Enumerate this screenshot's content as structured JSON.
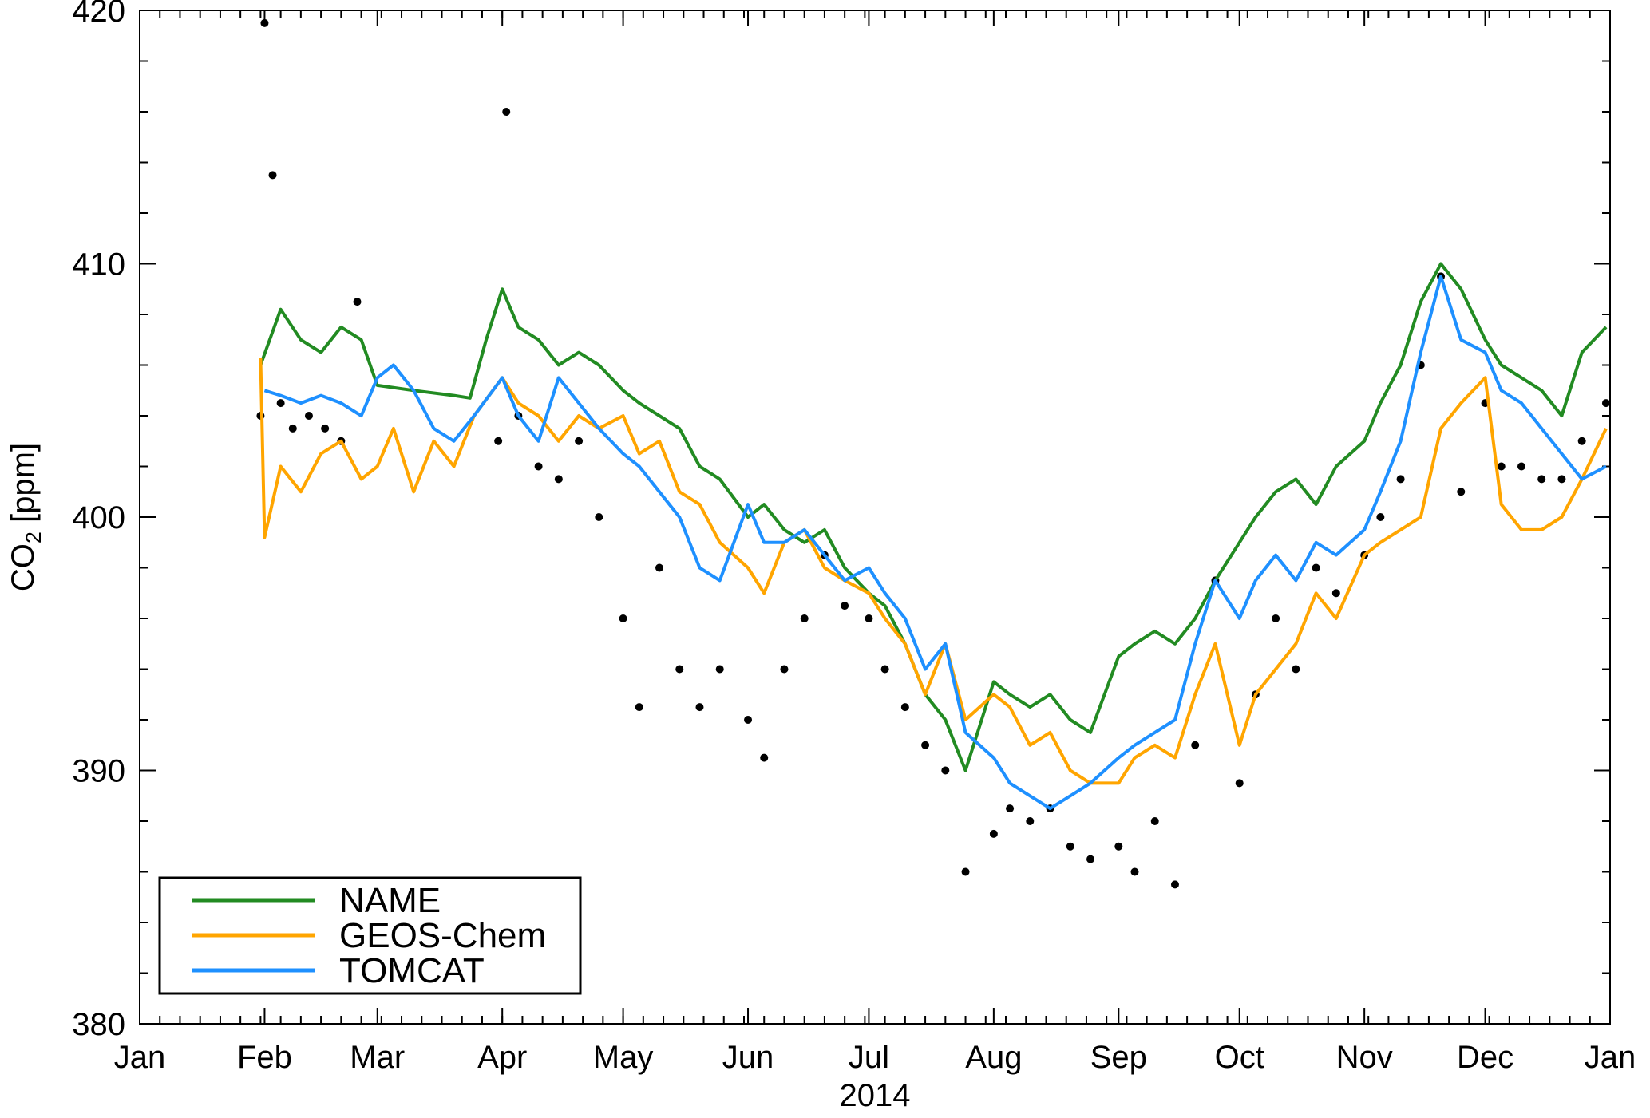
{
  "chart_data": {
    "type": "line",
    "xlabel": "2014",
    "ylabel": "CO2 [ppm]",
    "ylabel_main": "CO",
    "ylabel_sub": "2",
    "ylabel_unit": " [ppm]",
    "xlim": [
      "2014-01-01",
      "2015-01-01"
    ],
    "ylim": [
      380,
      420
    ],
    "x_tick_labels": [
      "Jan",
      "Feb",
      "Mar",
      "Apr",
      "May",
      "Jun",
      "Jul",
      "Aug",
      "Sep",
      "Oct",
      "Nov",
      "Dec",
      "Jan"
    ],
    "x_tick_dates": [
      "2014-01-01",
      "2014-02-01",
      "2014-03-01",
      "2014-04-01",
      "2014-05-01",
      "2014-06-01",
      "2014-07-01",
      "2014-08-01",
      "2014-09-01",
      "2014-10-01",
      "2014-11-01",
      "2014-12-01",
      "2015-01-01"
    ],
    "y_ticks": [
      380,
      390,
      400,
      410,
      420
    ],
    "legend_position": "bottom-left",
    "series": [
      {
        "name": "NAME",
        "color": "#228B22",
        "points": [
          [
            "2014-01-31",
            406.0
          ],
          [
            "2014-02-05",
            408.2
          ],
          [
            "2014-02-10",
            407.0
          ],
          [
            "2014-02-15",
            406.5
          ],
          [
            "2014-02-20",
            407.5
          ],
          [
            "2014-02-25",
            407.0
          ],
          [
            "2014-03-01",
            405.2
          ],
          [
            "2014-03-10",
            405.0
          ],
          [
            "2014-03-20",
            404.8
          ],
          [
            "2014-03-24",
            404.7
          ],
          [
            "2014-03-28",
            407.0
          ],
          [
            "2014-04-01",
            409.0
          ],
          [
            "2014-04-05",
            407.5
          ],
          [
            "2014-04-10",
            407.0
          ],
          [
            "2014-04-15",
            406.0
          ],
          [
            "2014-04-20",
            406.5
          ],
          [
            "2014-04-25",
            406.0
          ],
          [
            "2014-05-01",
            405.0
          ],
          [
            "2014-05-05",
            404.5
          ],
          [
            "2014-05-10",
            404.0
          ],
          [
            "2014-05-15",
            403.5
          ],
          [
            "2014-05-20",
            402.0
          ],
          [
            "2014-05-25",
            401.5
          ],
          [
            "2014-06-01",
            400.0
          ],
          [
            "2014-06-05",
            400.5
          ],
          [
            "2014-06-10",
            399.5
          ],
          [
            "2014-06-15",
            399.0
          ],
          [
            "2014-06-20",
            399.5
          ],
          [
            "2014-06-25",
            398.0
          ],
          [
            "2014-07-01",
            397.0
          ],
          [
            "2014-07-05",
            396.5
          ],
          [
            "2014-07-10",
            395.0
          ],
          [
            "2014-07-15",
            393.0
          ],
          [
            "2014-07-20",
            392.0
          ],
          [
            "2014-07-25",
            390.0
          ],
          [
            "2014-08-01",
            393.5
          ],
          [
            "2014-08-05",
            393.0
          ],
          [
            "2014-08-10",
            392.5
          ],
          [
            "2014-08-15",
            393.0
          ],
          [
            "2014-08-20",
            392.0
          ],
          [
            "2014-08-25",
            391.5
          ],
          [
            "2014-09-01",
            394.5
          ],
          [
            "2014-09-05",
            395.0
          ],
          [
            "2014-09-10",
            395.5
          ],
          [
            "2014-09-15",
            395.0
          ],
          [
            "2014-09-20",
            396.0
          ],
          [
            "2014-09-25",
            397.5
          ],
          [
            "2014-10-01",
            399.0
          ],
          [
            "2014-10-05",
            400.0
          ],
          [
            "2014-10-10",
            401.0
          ],
          [
            "2014-10-15",
            401.5
          ],
          [
            "2014-10-20",
            400.5
          ],
          [
            "2014-10-25",
            402.0
          ],
          [
            "2014-11-01",
            403.0
          ],
          [
            "2014-11-05",
            404.5
          ],
          [
            "2014-11-10",
            406.0
          ],
          [
            "2014-11-15",
            408.5
          ],
          [
            "2014-11-20",
            410.0
          ],
          [
            "2014-11-25",
            409.0
          ],
          [
            "2014-12-01",
            407.0
          ],
          [
            "2014-12-05",
            406.0
          ],
          [
            "2014-12-10",
            405.5
          ],
          [
            "2014-12-15",
            405.0
          ],
          [
            "2014-12-20",
            404.0
          ],
          [
            "2014-12-25",
            406.5
          ],
          [
            "2014-12-31",
            407.5
          ]
        ]
      },
      {
        "name": "GEOS-Chem",
        "color": "#FFA500",
        "points": [
          [
            "2014-01-31",
            406.3
          ],
          [
            "2014-02-01",
            399.2
          ],
          [
            "2014-02-05",
            402.0
          ],
          [
            "2014-02-10",
            401.0
          ],
          [
            "2014-02-15",
            402.5
          ],
          [
            "2014-02-20",
            403.0
          ],
          [
            "2014-02-25",
            401.5
          ],
          [
            "2014-03-01",
            402.0
          ],
          [
            "2014-03-05",
            403.5
          ],
          [
            "2014-03-10",
            401.0
          ],
          [
            "2014-03-15",
            403.0
          ],
          [
            "2014-03-20",
            402.0
          ],
          [
            "2014-03-25",
            404.0
          ],
          [
            "2014-04-01",
            405.5
          ],
          [
            "2014-04-05",
            404.5
          ],
          [
            "2014-04-10",
            404.0
          ],
          [
            "2014-04-15",
            403.0
          ],
          [
            "2014-04-20",
            404.0
          ],
          [
            "2014-04-25",
            403.5
          ],
          [
            "2014-05-01",
            404.0
          ],
          [
            "2014-05-05",
            402.5
          ],
          [
            "2014-05-10",
            403.0
          ],
          [
            "2014-05-15",
            401.0
          ],
          [
            "2014-05-20",
            400.5
          ],
          [
            "2014-05-25",
            399.0
          ],
          [
            "2014-06-01",
            398.0
          ],
          [
            "2014-06-05",
            397.0
          ],
          [
            "2014-06-10",
            399.0
          ],
          [
            "2014-06-15",
            399.5
          ],
          [
            "2014-06-20",
            398.0
          ],
          [
            "2014-06-25",
            397.5
          ],
          [
            "2014-07-01",
            397.0
          ],
          [
            "2014-07-05",
            396.0
          ],
          [
            "2014-07-10",
            395.0
          ],
          [
            "2014-07-15",
            393.0
          ],
          [
            "2014-07-20",
            395.0
          ],
          [
            "2014-07-25",
            392.0
          ],
          [
            "2014-08-01",
            393.0
          ],
          [
            "2014-08-05",
            392.5
          ],
          [
            "2014-08-10",
            391.0
          ],
          [
            "2014-08-15",
            391.5
          ],
          [
            "2014-08-20",
            390.0
          ],
          [
            "2014-08-25",
            389.5
          ],
          [
            "2014-09-01",
            389.5
          ],
          [
            "2014-09-05",
            390.5
          ],
          [
            "2014-09-10",
            391.0
          ],
          [
            "2014-09-15",
            390.5
          ],
          [
            "2014-09-20",
            393.0
          ],
          [
            "2014-09-25",
            395.0
          ],
          [
            "2014-10-01",
            391.0
          ],
          [
            "2014-10-05",
            393.0
          ],
          [
            "2014-10-10",
            394.0
          ],
          [
            "2014-10-15",
            395.0
          ],
          [
            "2014-10-20",
            397.0
          ],
          [
            "2014-10-25",
            396.0
          ],
          [
            "2014-11-01",
            398.5
          ],
          [
            "2014-11-05",
            399.0
          ],
          [
            "2014-11-10",
            399.5
          ],
          [
            "2014-11-15",
            400.0
          ],
          [
            "2014-11-20",
            403.5
          ],
          [
            "2014-11-25",
            404.5
          ],
          [
            "2014-12-01",
            405.5
          ],
          [
            "2014-12-05",
            400.5
          ],
          [
            "2014-12-10",
            399.5
          ],
          [
            "2014-12-15",
            399.5
          ],
          [
            "2014-12-20",
            400.0
          ],
          [
            "2014-12-25",
            401.5
          ],
          [
            "2014-12-31",
            403.5
          ]
        ]
      },
      {
        "name": "TOMCAT",
        "color": "#1E90FF",
        "points": [
          [
            "2014-02-01",
            405.0
          ],
          [
            "2014-02-05",
            404.8
          ],
          [
            "2014-02-10",
            404.5
          ],
          [
            "2014-02-15",
            404.8
          ],
          [
            "2014-02-20",
            404.5
          ],
          [
            "2014-02-25",
            404.0
          ],
          [
            "2014-03-01",
            405.5
          ],
          [
            "2014-03-05",
            406.0
          ],
          [
            "2014-03-10",
            405.0
          ],
          [
            "2014-03-15",
            403.5
          ],
          [
            "2014-03-20",
            403.0
          ],
          [
            "2014-03-25",
            404.0
          ],
          [
            "2014-04-01",
            405.5
          ],
          [
            "2014-04-05",
            404.0
          ],
          [
            "2014-04-10",
            403.0
          ],
          [
            "2014-04-15",
            405.5
          ],
          [
            "2014-04-20",
            404.5
          ],
          [
            "2014-04-25",
            403.5
          ],
          [
            "2014-05-01",
            402.5
          ],
          [
            "2014-05-05",
            402.0
          ],
          [
            "2014-05-10",
            401.0
          ],
          [
            "2014-05-15",
            400.0
          ],
          [
            "2014-05-20",
            398.0
          ],
          [
            "2014-05-25",
            397.5
          ],
          [
            "2014-06-01",
            400.5
          ],
          [
            "2014-06-05",
            399.0
          ],
          [
            "2014-06-10",
            399.0
          ],
          [
            "2014-06-15",
            399.5
          ],
          [
            "2014-06-20",
            398.5
          ],
          [
            "2014-06-25",
            397.5
          ],
          [
            "2014-07-01",
            398.0
          ],
          [
            "2014-07-05",
            397.0
          ],
          [
            "2014-07-10",
            396.0
          ],
          [
            "2014-07-15",
            394.0
          ],
          [
            "2014-07-20",
            395.0
          ],
          [
            "2014-07-25",
            391.5
          ],
          [
            "2014-08-01",
            390.5
          ],
          [
            "2014-08-05",
            389.5
          ],
          [
            "2014-08-10",
            389.0
          ],
          [
            "2014-08-15",
            388.5
          ],
          [
            "2014-08-20",
            389.0
          ],
          [
            "2014-08-25",
            389.5
          ],
          [
            "2014-09-01",
            390.5
          ],
          [
            "2014-09-05",
            391.0
          ],
          [
            "2014-09-10",
            391.5
          ],
          [
            "2014-09-15",
            392.0
          ],
          [
            "2014-09-20",
            395.0
          ],
          [
            "2014-09-25",
            397.5
          ],
          [
            "2014-10-01",
            396.0
          ],
          [
            "2014-10-05",
            397.5
          ],
          [
            "2014-10-10",
            398.5
          ],
          [
            "2014-10-15",
            397.5
          ],
          [
            "2014-10-20",
            399.0
          ],
          [
            "2014-10-25",
            398.5
          ],
          [
            "2014-11-01",
            399.5
          ],
          [
            "2014-11-05",
            401.0
          ],
          [
            "2014-11-10",
            403.0
          ],
          [
            "2014-11-15",
            406.5
          ],
          [
            "2014-11-20",
            409.5
          ],
          [
            "2014-11-25",
            407.0
          ],
          [
            "2014-12-01",
            406.5
          ],
          [
            "2014-12-05",
            405.0
          ],
          [
            "2014-12-10",
            404.5
          ],
          [
            "2014-12-15",
            403.5
          ],
          [
            "2014-12-20",
            402.5
          ],
          [
            "2014-12-25",
            401.5
          ],
          [
            "2014-12-31",
            402.0
          ]
        ]
      },
      {
        "name": "",
        "marker": "dot",
        "color": "#000000",
        "points": [
          [
            "2014-01-31",
            404.0
          ],
          [
            "2014-02-01",
            419.5
          ],
          [
            "2014-02-03",
            413.5
          ],
          [
            "2014-02-05",
            404.5
          ],
          [
            "2014-02-08",
            403.5
          ],
          [
            "2014-02-12",
            404.0
          ],
          [
            "2014-02-16",
            403.5
          ],
          [
            "2014-02-20",
            403.0
          ],
          [
            "2014-02-24",
            408.5
          ],
          [
            "2014-03-31",
            403.0
          ],
          [
            "2014-04-02",
            416.0
          ],
          [
            "2014-04-05",
            404.0
          ],
          [
            "2014-04-10",
            402.0
          ],
          [
            "2014-04-15",
            401.5
          ],
          [
            "2014-04-20",
            403.0
          ],
          [
            "2014-04-25",
            400.0
          ],
          [
            "2014-05-01",
            396.0
          ],
          [
            "2014-05-05",
            392.5
          ],
          [
            "2014-05-10",
            398.0
          ],
          [
            "2014-05-15",
            394.0
          ],
          [
            "2014-05-20",
            392.5
          ],
          [
            "2014-05-25",
            394.0
          ],
          [
            "2014-06-01",
            392.0
          ],
          [
            "2014-06-05",
            390.5
          ],
          [
            "2014-06-10",
            394.0
          ],
          [
            "2014-06-15",
            396.0
          ],
          [
            "2014-06-20",
            398.5
          ],
          [
            "2014-06-25",
            396.5
          ],
          [
            "2014-07-01",
            396.0
          ],
          [
            "2014-07-05",
            394.0
          ],
          [
            "2014-07-10",
            392.5
          ],
          [
            "2014-07-15",
            391.0
          ],
          [
            "2014-07-20",
            390.0
          ],
          [
            "2014-07-25",
            386.0
          ],
          [
            "2014-08-01",
            387.5
          ],
          [
            "2014-08-05",
            388.5
          ],
          [
            "2014-08-10",
            388.0
          ],
          [
            "2014-08-15",
            388.5
          ],
          [
            "2014-08-20",
            387.0
          ],
          [
            "2014-08-25",
            386.5
          ],
          [
            "2014-09-01",
            387.0
          ],
          [
            "2014-09-05",
            386.0
          ],
          [
            "2014-09-10",
            388.0
          ],
          [
            "2014-09-15",
            385.5
          ],
          [
            "2014-09-20",
            391.0
          ],
          [
            "2014-09-25",
            397.5
          ],
          [
            "2014-10-01",
            389.5
          ],
          [
            "2014-10-05",
            393.0
          ],
          [
            "2014-10-10",
            396.0
          ],
          [
            "2014-10-15",
            394.0
          ],
          [
            "2014-10-20",
            398.0
          ],
          [
            "2014-10-25",
            397.0
          ],
          [
            "2014-11-01",
            398.5
          ],
          [
            "2014-11-05",
            400.0
          ],
          [
            "2014-11-10",
            401.5
          ],
          [
            "2014-11-15",
            406.0
          ],
          [
            "2014-11-20",
            409.5
          ],
          [
            "2014-11-25",
            401.0
          ],
          [
            "2014-12-01",
            404.5
          ],
          [
            "2014-12-05",
            402.0
          ],
          [
            "2014-12-10",
            402.0
          ],
          [
            "2014-12-15",
            401.5
          ],
          [
            "2014-12-20",
            401.5
          ],
          [
            "2014-12-25",
            403.0
          ],
          [
            "2014-12-31",
            404.5
          ]
        ]
      }
    ]
  }
}
